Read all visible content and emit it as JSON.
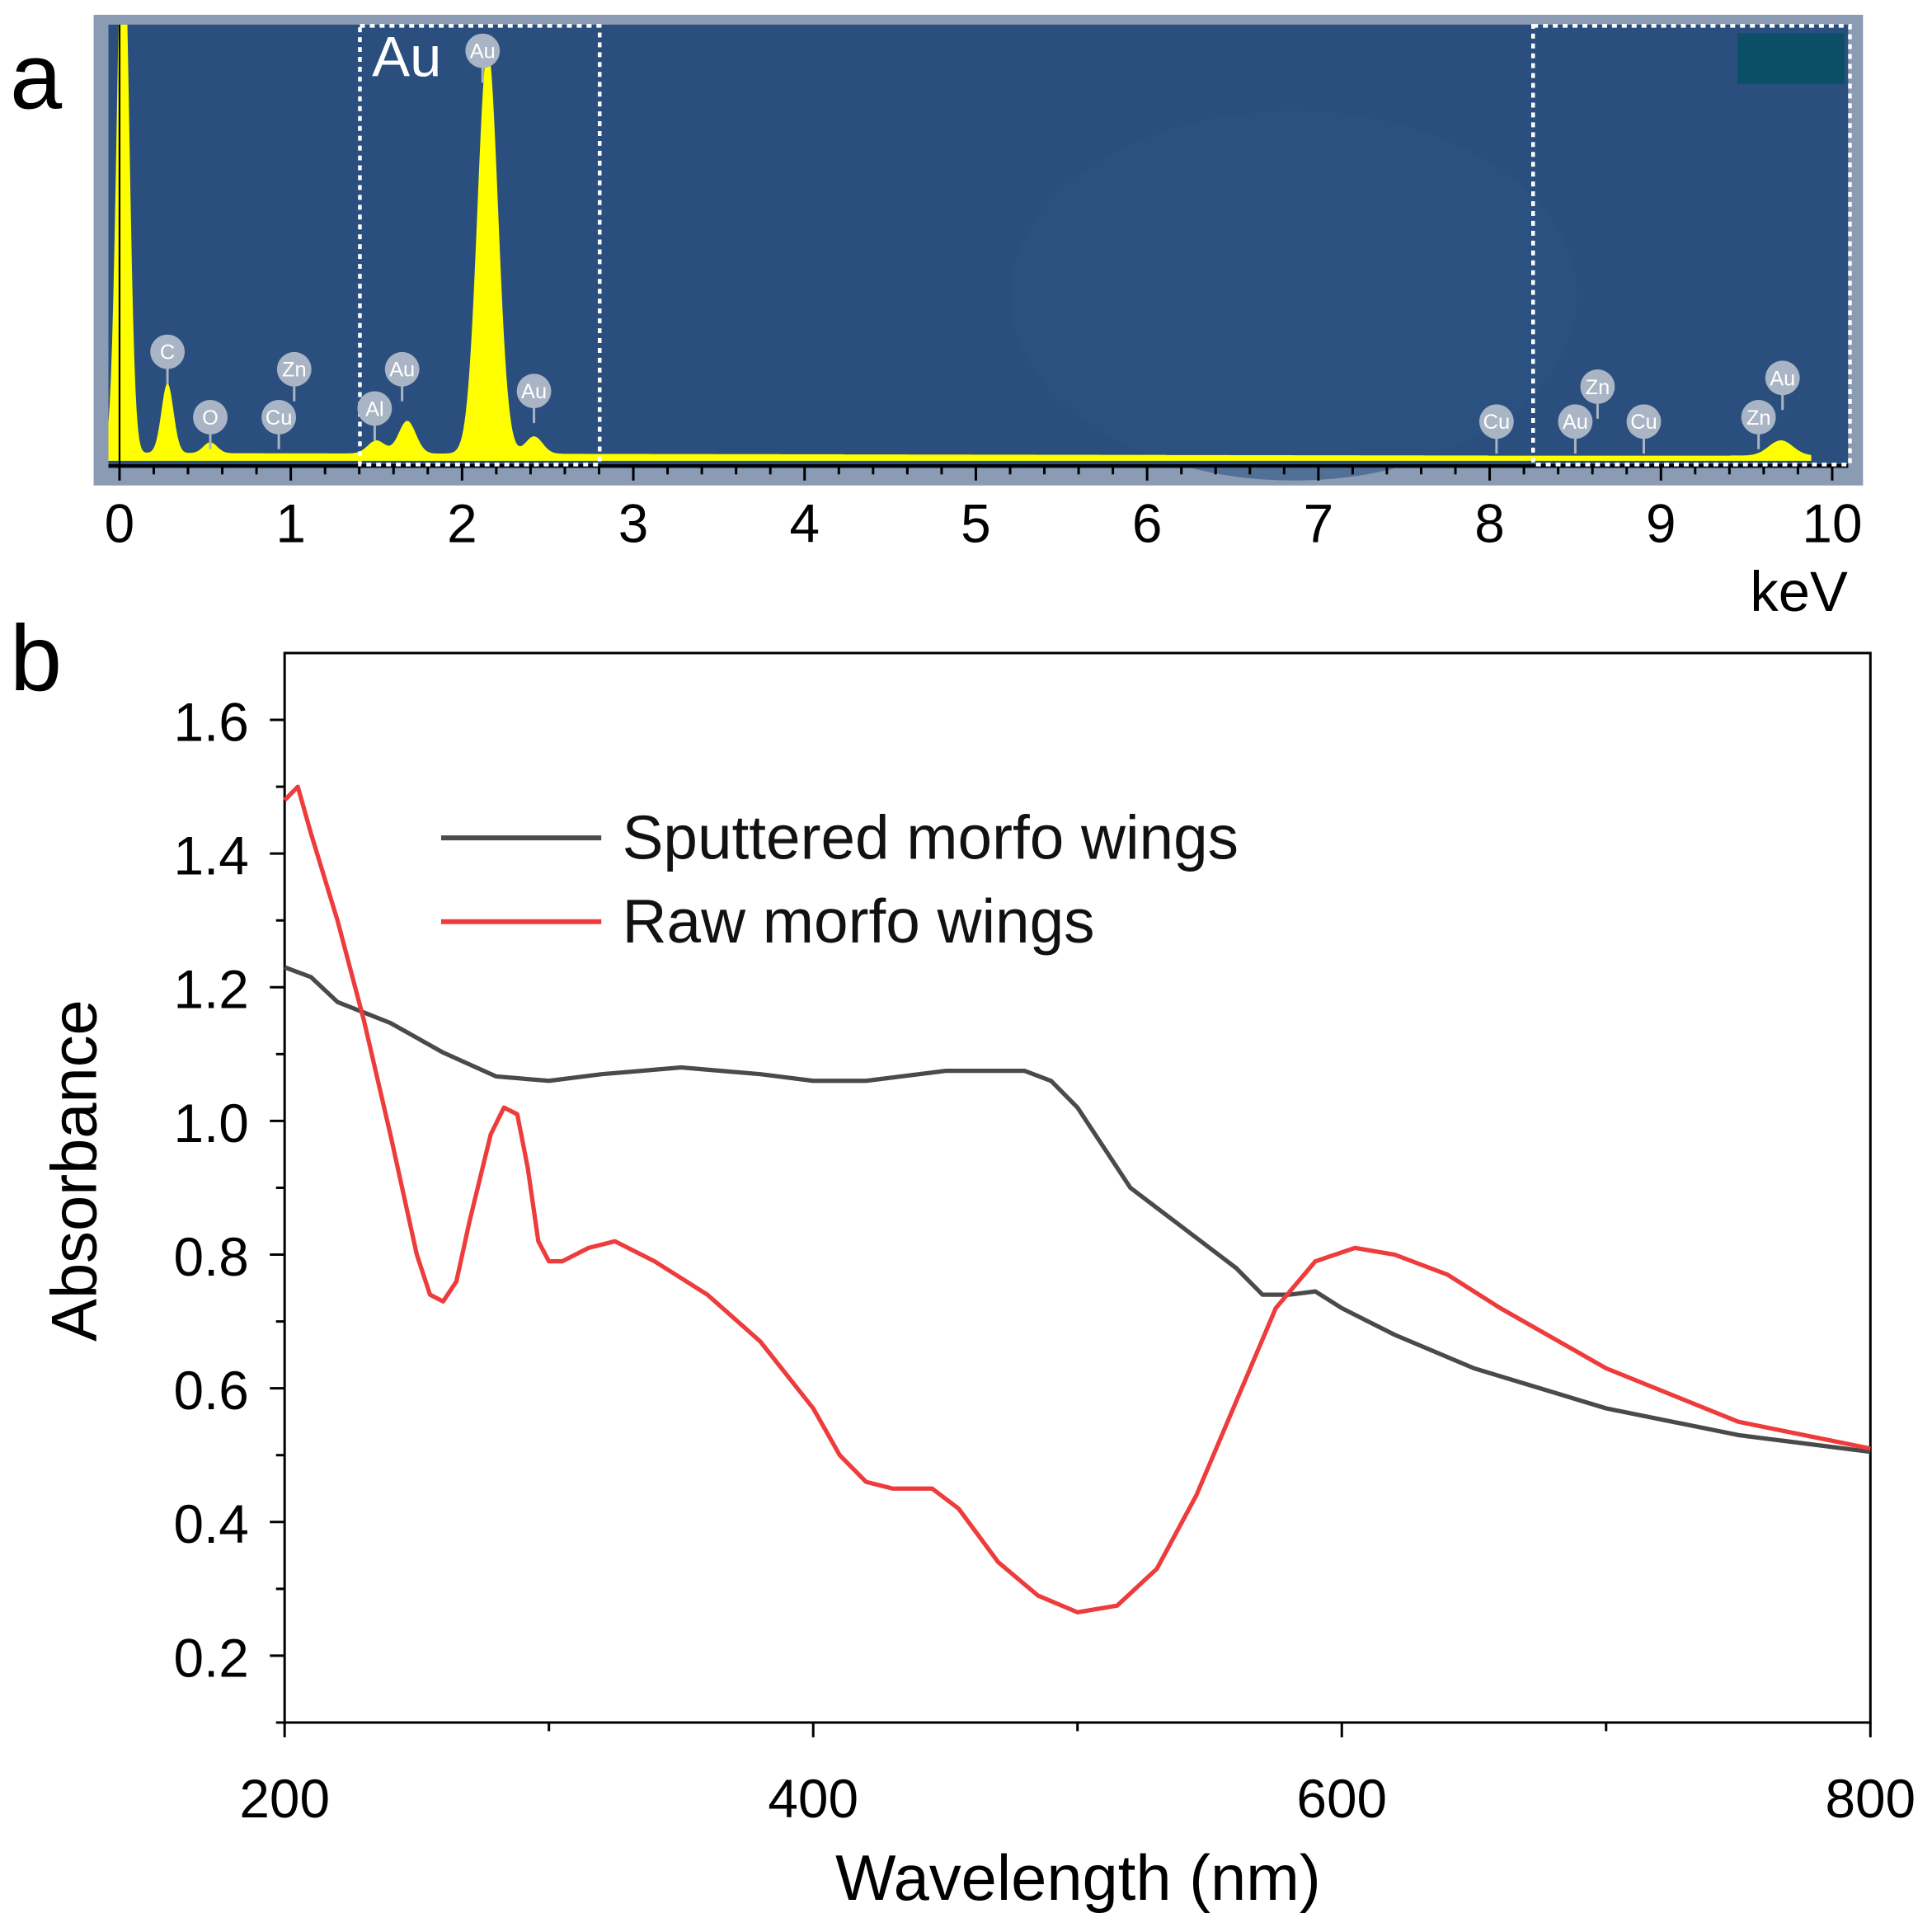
{
  "chart_data": [
    {
      "panel_label": "a",
      "type": "area",
      "title": "",
      "xlabel": "keV",
      "xlim": [
        0,
        10
      ],
      "xticks": [
        "0",
        "1",
        "2",
        "3",
        "4",
        "5",
        "6",
        "7",
        "8",
        "9",
        "10"
      ],
      "highlight_label": "Au",
      "highlight_regions_keV": [
        [
          1.4,
          2.8
        ],
        [
          8.25,
          10.1
        ]
      ],
      "colors": {
        "background": "#2a4f7e",
        "frame": "#8a9bb3",
        "spectrum": "#ffff00",
        "badge": "#a9b4c4",
        "inset": "#0b4f66"
      },
      "peaks": [
        {
          "keV": 0.02,
          "intensity": 1.3,
          "width": 0.035
        },
        {
          "keV": 0.28,
          "intensity": 0.16,
          "width": 0.035
        },
        {
          "keV": 0.53,
          "intensity": 0.025,
          "width": 0.04
        },
        {
          "keV": 1.5,
          "intensity": 0.03,
          "width": 0.05
        },
        {
          "keV": 1.68,
          "intensity": 0.075,
          "width": 0.05
        },
        {
          "keV": 2.15,
          "intensity": 0.93,
          "width": 0.06
        },
        {
          "keV": 2.42,
          "intensity": 0.04,
          "width": 0.05
        },
        {
          "keV": 9.7,
          "intensity": 0.035,
          "width": 0.07
        }
      ],
      "element_labels": [
        {
          "text": "C",
          "keV": 0.28,
          "level": 0.25
        },
        {
          "text": "O",
          "keV": 0.53,
          "level": 0.1
        },
        {
          "text": "Cu",
          "keV": 0.93,
          "level": 0.1
        },
        {
          "text": "Zn",
          "keV": 1.02,
          "level": 0.21
        },
        {
          "text": "Al",
          "keV": 1.49,
          "level": 0.12
        },
        {
          "text": "Au",
          "keV": 1.65,
          "level": 0.21
        },
        {
          "text": "Au",
          "keV": 2.12,
          "level": 0.94
        },
        {
          "text": "Au",
          "keV": 2.42,
          "level": 0.16
        },
        {
          "text": "Cu",
          "keV": 8.04,
          "level": 0.09
        },
        {
          "text": "Au",
          "keV": 8.5,
          "level": 0.09
        },
        {
          "text": "Zn",
          "keV": 8.63,
          "level": 0.17
        },
        {
          "text": "Cu",
          "keV": 8.9,
          "level": 0.09
        },
        {
          "text": "Zn",
          "keV": 9.57,
          "level": 0.1
        },
        {
          "text": "Au",
          "keV": 9.71,
          "level": 0.19
        }
      ]
    },
    {
      "panel_label": "b",
      "type": "line",
      "title": "",
      "xlabel": "Wavelength (nm)",
      "ylabel": "Absorbance",
      "xlim": [
        200,
        800
      ],
      "ylim": [
        0.1,
        1.7
      ],
      "xticks": [
        "200",
        "400",
        "600",
        "800"
      ],
      "yticks": [
        "0.2",
        "0.4",
        "0.6",
        "0.8",
        "1.0",
        "1.2",
        "1.4",
        "1.6"
      ],
      "legend_position": "top-left",
      "series": [
        {
          "name": "Sputtered morfo wings",
          "color": "#4a4a4a",
          "x": [
            200,
            210,
            220,
            240,
            260,
            280,
            300,
            320,
            350,
            380,
            400,
            420,
            450,
            480,
            490,
            500,
            510,
            520,
            540,
            560,
            570,
            580,
            590,
            600,
            620,
            650,
            700,
            750,
            800
          ],
          "y": [
            1.23,
            1.21,
            1.17,
            1.14,
            1.1,
            1.07,
            1.06,
            1.07,
            1.08,
            1.07,
            1.06,
            1.06,
            1.075,
            1.075,
            1.06,
            1.02,
            0.96,
            0.9,
            0.84,
            0.78,
            0.74,
            0.74,
            0.745,
            0.72,
            0.68,
            0.63,
            0.57,
            0.53,
            0.505
          ]
        },
        {
          "name": "Raw morfo wings",
          "color": "#ee3b3b",
          "x": [
            200,
            205,
            210,
            220,
            230,
            240,
            250,
            255,
            260,
            265,
            270,
            278,
            283,
            288,
            292,
            296,
            300,
            305,
            315,
            325,
            340,
            360,
            380,
            400,
            410,
            420,
            430,
            445,
            455,
            470,
            485,
            500,
            515,
            530,
            545,
            560,
            575,
            590,
            605,
            620,
            640,
            660,
            700,
            750,
            800
          ],
          "y": [
            1.48,
            1.5,
            1.43,
            1.3,
            1.15,
            0.98,
            0.8,
            0.74,
            0.73,
            0.76,
            0.85,
            0.98,
            1.02,
            1.01,
            0.93,
            0.82,
            0.79,
            0.79,
            0.81,
            0.82,
            0.79,
            0.74,
            0.67,
            0.57,
            0.5,
            0.46,
            0.45,
            0.45,
            0.42,
            0.34,
            0.29,
            0.265,
            0.275,
            0.33,
            0.44,
            0.58,
            0.72,
            0.79,
            0.81,
            0.8,
            0.77,
            0.72,
            0.63,
            0.55,
            0.51
          ]
        }
      ]
    }
  ]
}
